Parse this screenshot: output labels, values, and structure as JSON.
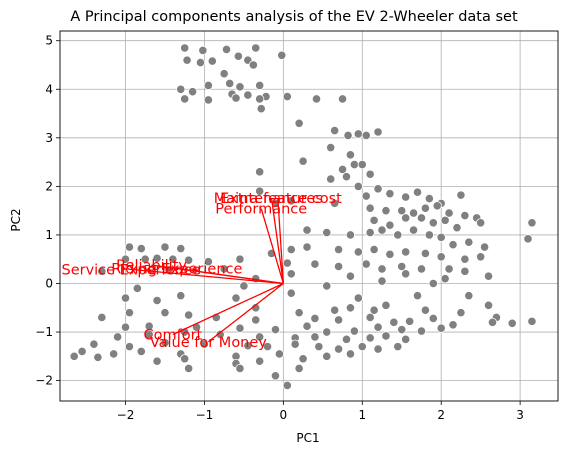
{
  "chart_data": {
    "type": "scatter",
    "title": "A Principal components analysis of the EV 2-Wheeler data set",
    "xlabel": "PC1",
    "ylabel": "PC2",
    "xlim": [
      -2.83,
      3.48
    ],
    "ylim": [
      -2.42,
      5.2
    ],
    "xticks": [
      -2,
      -1,
      0,
      1,
      2,
      3
    ],
    "yticks": [
      -2,
      -1,
      0,
      1,
      2,
      3,
      4,
      5
    ],
    "xtick_labels": [
      "−2",
      "−1",
      "0",
      "1",
      "2",
      "3"
    ],
    "ytick_labels": [
      "−2",
      "−1",
      "0",
      "1",
      "2",
      "3",
      "4",
      "5"
    ],
    "grid": true,
    "colors": {
      "points": "#808080",
      "point_edge": "#ffffff",
      "loadings": "#ff0000",
      "grid": "#b0b0b0"
    },
    "loadings": [
      {
        "name": "Maintenance cost",
        "x": -0.07,
        "y": 1.76
      },
      {
        "name": "Extra features",
        "x": -0.15,
        "y": 1.76
      },
      {
        "name": "Performance",
        "x": -0.28,
        "y": 1.54
      },
      {
        "name": "Reliability",
        "x": -1.67,
        "y": 0.38
      },
      {
        "name": "Service Experience",
        "x": -1.93,
        "y": 0.29
      },
      {
        "name": "Riding Experience",
        "x": -1.35,
        "y": 0.31
      },
      {
        "name": "Comfort",
        "x": -1.4,
        "y": -1.05
      },
      {
        "name": "Value for Money",
        "x": -0.95,
        "y": -1.2
      }
    ],
    "points": [
      [
        -1.25,
        4.85
      ],
      [
        -1.02,
        4.8
      ],
      [
        -0.72,
        4.82
      ],
      [
        -0.35,
        4.85
      ],
      [
        -1.22,
        4.6
      ],
      [
        -1.05,
        4.55
      ],
      [
        -0.9,
        4.58
      ],
      [
        -0.57,
        4.68
      ],
      [
        -0.45,
        4.6
      ],
      [
        -0.02,
        4.7
      ],
      [
        -0.38,
        4.5
      ],
      [
        -0.75,
        4.32
      ],
      [
        -1.3,
        4.0
      ],
      [
        -0.95,
        4.08
      ],
      [
        -0.68,
        4.12
      ],
      [
        -0.55,
        4.05
      ],
      [
        -0.3,
        4.08
      ],
      [
        -1.15,
        3.95
      ],
      [
        -0.65,
        3.9
      ],
      [
        -0.45,
        3.88
      ],
      [
        -0.22,
        3.85
      ],
      [
        0.05,
        3.85
      ],
      [
        -1.25,
        3.8
      ],
      [
        -0.95,
        3.78
      ],
      [
        -0.6,
        3.82
      ],
      [
        -0.3,
        3.8
      ],
      [
        0.42,
        3.8
      ],
      [
        0.75,
        3.8
      ],
      [
        -0.28,
        3.6
      ],
      [
        0.2,
        3.3
      ],
      [
        0.65,
        3.15
      ],
      [
        0.82,
        3.05
      ],
      [
        0.95,
        3.08
      ],
      [
        1.05,
        3.05
      ],
      [
        1.2,
        3.12
      ],
      [
        0.6,
        2.8
      ],
      [
        0.85,
        2.65
      ],
      [
        0.25,
        2.52
      ],
      [
        0.9,
        2.45
      ],
      [
        -0.3,
        2.3
      ],
      [
        0.75,
        2.35
      ],
      [
        1.0,
        2.45
      ],
      [
        0.8,
        2.2
      ],
      [
        1.1,
        2.25
      ],
      [
        0.6,
        2.15
      ],
      [
        0.95,
        2.0
      ],
      [
        -0.3,
        1.9
      ],
      [
        -0.1,
        1.65
      ],
      [
        0.1,
        1.7
      ],
      [
        0.65,
        1.65
      ],
      [
        1.05,
        1.8
      ],
      [
        1.2,
        1.95
      ],
      [
        1.35,
        1.85
      ],
      [
        1.55,
        1.78
      ],
      [
        1.7,
        1.88
      ],
      [
        1.85,
        1.75
      ],
      [
        2.0,
        1.65
      ],
      [
        2.25,
        1.82
      ],
      [
        1.1,
        1.55
      ],
      [
        1.3,
        1.5
      ],
      [
        1.5,
        1.5
      ],
      [
        1.65,
        1.45
      ],
      [
        1.8,
        1.55
      ],
      [
        1.95,
        1.6
      ],
      [
        2.1,
        1.45
      ],
      [
        2.3,
        1.4
      ],
      [
        2.45,
        1.35
      ],
      [
        1.15,
        1.3
      ],
      [
        1.35,
        1.2
      ],
      [
        1.55,
        1.35
      ],
      [
        1.75,
        1.35
      ],
      [
        1.9,
        1.25
      ],
      [
        2.05,
        1.3
      ],
      [
        2.2,
        1.15
      ],
      [
        2.5,
        1.25
      ],
      [
        3.15,
        1.25
      ],
      [
        0.3,
        1.1
      ],
      [
        0.55,
        1.05
      ],
      [
        0.85,
        1.0
      ],
      [
        1.1,
        1.05
      ],
      [
        1.25,
        1.1
      ],
      [
        1.45,
        1.0
      ],
      [
        1.65,
        1.1
      ],
      [
        1.85,
        1.0
      ],
      [
        2.0,
        0.95
      ],
      [
        2.15,
        0.8
      ],
      [
        2.35,
        0.85
      ],
      [
        2.55,
        0.75
      ],
      [
        3.1,
        0.92
      ],
      [
        -1.95,
        0.75
      ],
      [
        -1.8,
        0.72
      ],
      [
        -1.5,
        0.75
      ],
      [
        -1.3,
        0.72
      ],
      [
        -0.15,
        0.62
      ],
      [
        0.1,
        0.7
      ],
      [
        0.3,
        0.75
      ],
      [
        0.7,
        0.7
      ],
      [
        0.95,
        0.65
      ],
      [
        1.15,
        0.7
      ],
      [
        1.35,
        0.6
      ],
      [
        1.55,
        0.65
      ],
      [
        1.8,
        0.62
      ],
      [
        2.0,
        0.55
      ],
      [
        2.3,
        0.5
      ],
      [
        2.5,
        0.55
      ],
      [
        -2.0,
        0.5
      ],
      [
        -1.75,
        0.5
      ],
      [
        -1.6,
        0.52
      ],
      [
        -1.4,
        0.5
      ],
      [
        -1.2,
        0.48
      ],
      [
        -0.95,
        0.45
      ],
      [
        -0.55,
        0.5
      ],
      [
        0.05,
        0.42
      ],
      [
        0.4,
        0.4
      ],
      [
        0.7,
        0.35
      ],
      [
        1.05,
        0.4
      ],
      [
        1.25,
        0.3
      ],
      [
        1.5,
        0.35
      ],
      [
        1.75,
        0.3
      ],
      [
        2.1,
        0.3
      ],
      [
        2.3,
        0.25
      ],
      [
        -2.3,
        0.25
      ],
      [
        -1.45,
        0.28
      ],
      [
        -0.75,
        0.3
      ],
      [
        0.1,
        0.2
      ],
      [
        0.85,
        0.15
      ],
      [
        1.55,
        0.2
      ],
      [
        2.05,
        0.1
      ],
      [
        2.6,
        0.15
      ],
      [
        -0.35,
        0.1
      ],
      [
        1.25,
        0.05
      ],
      [
        1.9,
        0.0
      ],
      [
        -1.85,
        -0.1
      ],
      [
        -0.5,
        -0.05
      ],
      [
        0.55,
        -0.05
      ],
      [
        -2.0,
        -0.3
      ],
      [
        -1.6,
        -0.35
      ],
      [
        -1.3,
        -0.25
      ],
      [
        -0.6,
        -0.3
      ],
      [
        0.1,
        -0.2
      ],
      [
        0.95,
        -0.3
      ],
      [
        1.7,
        -0.25
      ],
      [
        2.35,
        -0.25
      ],
      [
        2.6,
        -0.45
      ],
      [
        -0.35,
        -0.5
      ],
      [
        -1.95,
        -0.6
      ],
      [
        -1.5,
        -0.6
      ],
      [
        0.2,
        -0.6
      ],
      [
        0.65,
        -0.55
      ],
      [
        0.85,
        -0.5
      ],
      [
        1.15,
        -0.55
      ],
      [
        1.3,
        -0.45
      ],
      [
        1.8,
        -0.55
      ],
      [
        2.25,
        -0.6
      ],
      [
        2.7,
        -0.7
      ],
      [
        -2.3,
        -0.7
      ],
      [
        -1.2,
        -0.65
      ],
      [
        -0.85,
        -0.7
      ],
      [
        -0.35,
        -0.75
      ],
      [
        0.4,
        -0.72
      ],
      [
        0.7,
        -0.75
      ],
      [
        1.1,
        -0.7
      ],
      [
        1.4,
        -0.8
      ],
      [
        1.6,
        -0.78
      ],
      [
        1.9,
        -0.72
      ],
      [
        2.15,
        -0.85
      ],
      [
        2.65,
        -0.8
      ],
      [
        2.9,
        -0.82
      ],
      [
        3.15,
        -0.78
      ],
      [
        -2.0,
        -0.9
      ],
      [
        -1.7,
        -0.88
      ],
      [
        -1.1,
        -0.9
      ],
      [
        -0.55,
        -0.92
      ],
      [
        -0.1,
        -0.95
      ],
      [
        0.3,
        -0.88
      ],
      [
        0.55,
        -1.0
      ],
      [
        0.9,
        -0.98
      ],
      [
        1.2,
        -0.9
      ],
      [
        1.5,
        -0.95
      ],
      [
        1.75,
        -0.98
      ],
      [
        2.0,
        -0.92
      ],
      [
        -2.1,
        -1.1
      ],
      [
        -1.7,
        -1.05
      ],
      [
        -1.25,
        -1.0
      ],
      [
        -0.8,
        -1.05
      ],
      [
        -0.3,
        -1.1
      ],
      [
        0.15,
        -1.12
      ],
      [
        0.4,
        -1.1
      ],
      [
        0.8,
        -1.15
      ],
      [
        1.1,
        -1.12
      ],
      [
        1.3,
        -1.08
      ],
      [
        1.55,
        -1.15
      ],
      [
        -2.4,
        -1.25
      ],
      [
        -1.95,
        -1.3
      ],
      [
        -1.5,
        -1.22
      ],
      [
        -1.0,
        -1.25
      ],
      [
        -0.45,
        -1.28
      ],
      [
        -0.2,
        -1.3
      ],
      [
        0.15,
        -1.25
      ],
      [
        0.45,
        -1.3
      ],
      [
        0.7,
        -1.35
      ],
      [
        1.0,
        -1.3
      ],
      [
        1.2,
        -1.35
      ],
      [
        1.45,
        -1.3
      ],
      [
        -2.55,
        -1.4
      ],
      [
        -2.15,
        -1.45
      ],
      [
        -1.8,
        -1.4
      ],
      [
        -1.3,
        -1.45
      ],
      [
        -0.6,
        -1.5
      ],
      [
        -0.05,
        -1.45
      ],
      [
        0.25,
        -1.55
      ],
      [
        0.55,
        -1.5
      ],
      [
        0.85,
        -1.45
      ],
      [
        -2.65,
        -1.5
      ],
      [
        -2.35,
        -1.52
      ],
      [
        -1.6,
        -1.6
      ],
      [
        -1.25,
        -1.55
      ],
      [
        -0.6,
        -1.65
      ],
      [
        -0.3,
        -1.6
      ],
      [
        -0.55,
        -1.75
      ],
      [
        -1.2,
        -1.75
      ],
      [
        0.2,
        -1.75
      ],
      [
        -0.1,
        -1.9
      ],
      [
        0.05,
        -2.1
      ]
    ]
  }
}
